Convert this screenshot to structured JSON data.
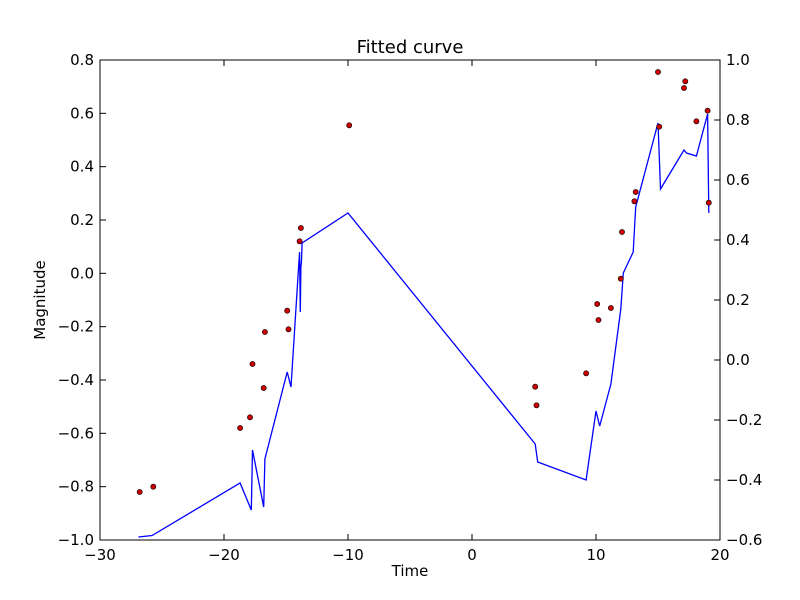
{
  "chart_data": {
    "type": "line",
    "title": "Fitted curve",
    "xlabel": "Time",
    "ylabel": "Magnitude",
    "xlim": [
      -30,
      20
    ],
    "ylim": [
      -1.0,
      0.8
    ],
    "y2lim": [
      -0.6,
      1.0
    ],
    "grid": false,
    "legend": "none",
    "xticks": [
      "−30",
      "−20",
      "−10",
      "0",
      "10",
      "20"
    ],
    "yticks": [
      "−1.0",
      "−0.8",
      "−0.6",
      "−0.4",
      "−0.2",
      "0.0",
      "0.2",
      "0.4",
      "0.6",
      "0.8"
    ],
    "y2ticks": [
      "−0.6",
      "−0.4",
      "−0.2",
      "0.0",
      "0.2",
      "0.4",
      "0.6",
      "0.8",
      "1.0"
    ],
    "series": [
      {
        "kind": "line",
        "axis": "right",
        "color": "#0000ff",
        "x": [
          -26.9,
          -25.8,
          -18.7,
          -17.8,
          -17.7,
          -16.8,
          -16.7,
          -14.9,
          -14.6,
          -14.0,
          -13.9,
          -13.85,
          -13.8,
          -13.75,
          -13.7,
          -10.0,
          5.1,
          5.3,
          9.2,
          10.0,
          10.3,
          11.2,
          12.0,
          12.2,
          13.0,
          13.2,
          15.0,
          15.2,
          17.1,
          17.3,
          18.1,
          19.0,
          19.1
        ],
        "y": [
          -0.59,
          -0.585,
          -0.41,
          -0.5,
          -0.3,
          -0.49,
          -0.33,
          -0.04,
          -0.09,
          0.3,
          0.36,
          0.16,
          0.31,
          0.33,
          0.39,
          0.49,
          -0.28,
          -0.34,
          -0.4,
          -0.17,
          -0.22,
          -0.08,
          0.17,
          0.29,
          0.36,
          0.51,
          0.79,
          0.57,
          0.7,
          0.69,
          0.68,
          0.82,
          0.49
        ]
      },
      {
        "kind": "scatter",
        "axis": "left",
        "color": "#cc0000",
        "x": [
          -26.8,
          -25.7,
          -18.7,
          -17.9,
          -17.7,
          -16.8,
          -16.7,
          -14.9,
          -14.8,
          -13.9,
          -13.8,
          -9.9,
          5.1,
          5.2,
          9.2,
          10.1,
          10.2,
          11.2,
          12.0,
          12.1,
          13.1,
          13.2,
          15.0,
          15.1,
          17.1,
          17.2,
          18.1,
          19.0,
          19.1
        ],
        "y": [
          -0.82,
          -0.8,
          -0.58,
          -0.54,
          -0.34,
          -0.43,
          -0.22,
          -0.14,
          -0.21,
          0.12,
          0.17,
          0.555,
          -0.425,
          -0.495,
          -0.375,
          -0.115,
          -0.175,
          -0.13,
          -0.02,
          0.155,
          0.27,
          0.305,
          0.755,
          0.55,
          0.695,
          0.72,
          0.57,
          0.61,
          0.265
        ]
      }
    ]
  }
}
